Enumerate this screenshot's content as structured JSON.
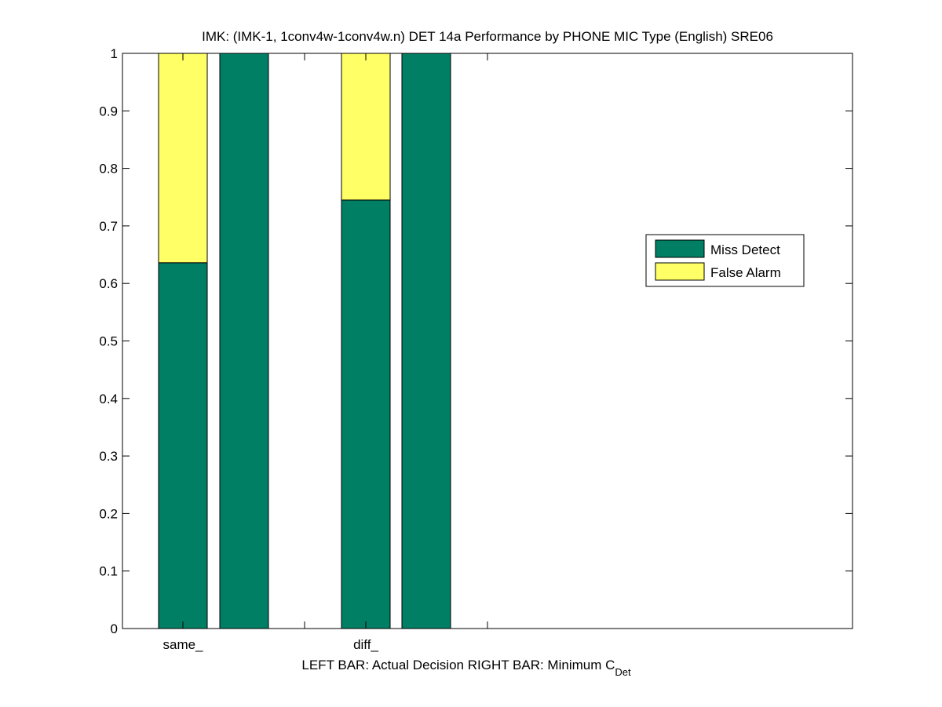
{
  "chart_data": {
    "type": "bar",
    "stacked": true,
    "title": "IMK: (IMK-1, 1conv4w-1conv4w.n) DET 14a Performance by PHONE MIC Type (English) SRE06",
    "xlabel_main": "LEFT BAR: Actual Decision     RIGHT BAR: Minimum C",
    "xlabel_sub": "Det",
    "categories": [
      "same_",
      "diff_"
    ],
    "bars": [
      {
        "category": "same_",
        "kind": "Actual Decision",
        "miss": 0.636,
        "false_alarm": 0.364
      },
      {
        "category": "same_",
        "kind": "Minimum CDet",
        "miss": 1.0,
        "false_alarm": 0.0
      },
      {
        "category": "diff_",
        "kind": "Actual Decision",
        "miss": 0.745,
        "false_alarm": 0.255
      },
      {
        "category": "diff_",
        "kind": "Minimum CDet",
        "miss": 1.0,
        "false_alarm": 0.0
      }
    ],
    "series": [
      {
        "name": "Miss Detect",
        "color": "#007f64"
      },
      {
        "name": "False Alarm",
        "color": "#ffff66"
      }
    ],
    "ylim": [
      0,
      1
    ],
    "yticks": [
      "0",
      "0.1",
      "0.2",
      "0.3",
      "0.4",
      "0.5",
      "0.6",
      "0.7",
      "0.8",
      "0.9",
      "1"
    ],
    "grid": false,
    "legend_position": "right"
  }
}
